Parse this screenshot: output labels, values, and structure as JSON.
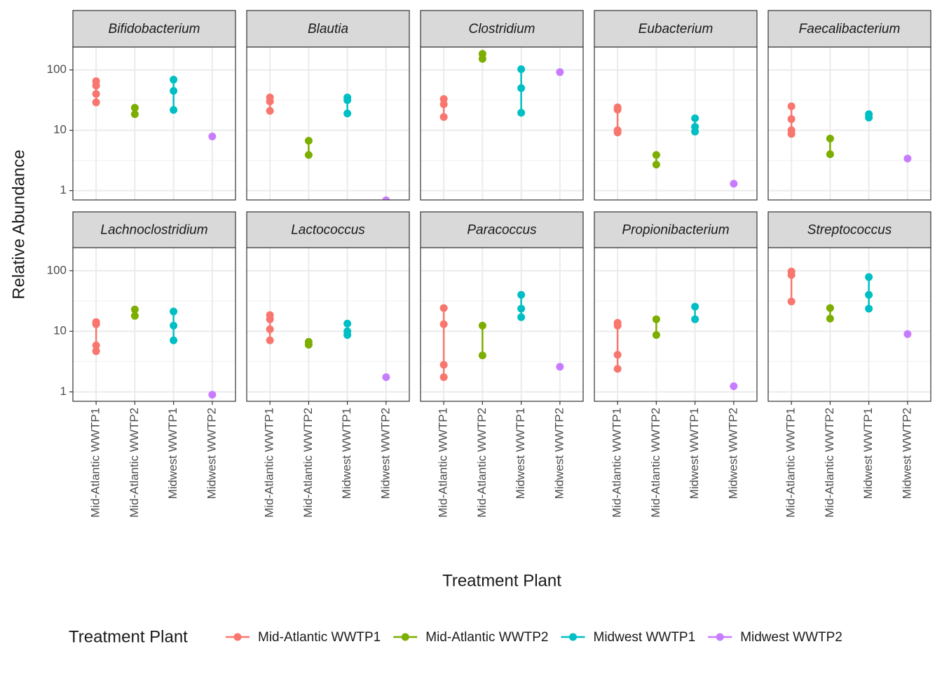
{
  "chart_data": {
    "type": "dotplot",
    "x_label": "Treatment Plant",
    "y_label": "Relative Abundance",
    "legend_title": "Treatment Plant",
    "categories": [
      "Mid-Atlantic WWTP1",
      "Mid-Atlantic WWTP2",
      "Midwest WWTP1",
      "Midwest WWTP2"
    ],
    "colors": [
      "#F8766D",
      "#7CAE00",
      "#00BFC4",
      "#C77CFF"
    ],
    "log_scale": true,
    "grid": true,
    "ylim": [
      0.7,
      240
    ],
    "yticks": [
      1,
      10,
      100
    ],
    "facets": [
      {
        "title": "Bifidobacterium",
        "values": [
          [
            65,
            55,
            40,
            29
          ],
          [
            23.6,
            18.5
          ],
          [
            69,
            45,
            21.7
          ],
          [
            7.9
          ]
        ]
      },
      {
        "title": "Blautia",
        "values": [
          [
            35,
            30,
            21
          ],
          [
            6.7,
            3.9
          ],
          [
            35,
            31.6,
            19
          ],
          [
            0.69
          ]
        ]
      },
      {
        "title": "Clostridium",
        "values": [
          [
            33,
            27,
            16.6
          ],
          [
            185,
            153
          ],
          [
            103,
            50,
            19.5
          ],
          [
            92
          ]
        ]
      },
      {
        "title": "Eubacterium",
        "values": [
          [
            24,
            22,
            10,
            9.2
          ],
          [
            3.9,
            2.7
          ],
          [
            15.8,
            11.4,
            9.5
          ],
          [
            1.3
          ]
        ]
      },
      {
        "title": "Faecalibacterium",
        "values": [
          [
            25,
            15.3,
            10,
            8.7
          ],
          [
            7.3,
            4.0
          ],
          [
            18.5,
            16.2
          ],
          [
            3.4
          ]
        ]
      },
      {
        "title": "Lachnoclostridium",
        "values": [
          [
            14.2,
            13.1,
            5.85,
            4.7
          ],
          [
            22.9,
            18
          ],
          [
            21.2,
            12.4,
            7.1
          ],
          [
            0.9
          ]
        ]
      },
      {
        "title": "Lactococcus",
        "values": [
          [
            18.5,
            15.8,
            10.8,
            7.1
          ],
          [
            6.7,
            6.0
          ],
          [
            13.4,
            10,
            8.7
          ],
          [
            1.75
          ]
        ]
      },
      {
        "title": "Paracoccus",
        "values": [
          [
            24.2,
            13.1,
            2.8,
            1.75
          ],
          [
            12.4,
            4.0
          ],
          [
            40,
            23.6,
            17.1
          ],
          [
            2.6
          ]
        ]
      },
      {
        "title": "Propionibacterium",
        "values": [
          [
            13.8,
            12.4,
            4.1,
            2.4
          ],
          [
            15.8,
            8.7
          ],
          [
            25.5,
            15.8
          ],
          [
            1.24
          ]
        ]
      },
      {
        "title": "Streptococcus",
        "values": [
          [
            97,
            85,
            31
          ],
          [
            24.2,
            16.2
          ],
          [
            78.5,
            40,
            23.6
          ],
          [
            9.0
          ]
        ]
      }
    ]
  }
}
